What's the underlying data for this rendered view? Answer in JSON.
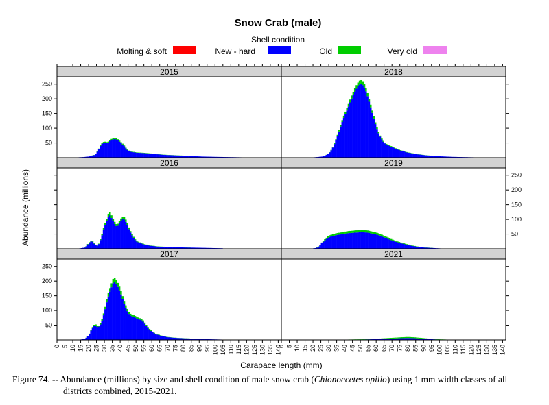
{
  "chart_data": {
    "type": "bar",
    "title": "Snow Crab (male)",
    "legend_title": "Shell condition",
    "legend_placement": "top",
    "xlabel": "Carapace length (mm)",
    "ylabel": "Abundance (millions)",
    "xlim": [
      0,
      142
    ],
    "ylim": [
      0,
      275
    ],
    "x_ticks": [
      0,
      5,
      10,
      15,
      20,
      25,
      30,
      35,
      40,
      45,
      50,
      55,
      60,
      65,
      70,
      75,
      80,
      85,
      90,
      95,
      100,
      105,
      110,
      115,
      120,
      125,
      130,
      135,
      140
    ],
    "y_ticks": [
      50,
      100,
      150,
      200,
      250
    ],
    "series": [
      {
        "name": "Molting & soft",
        "color": "#ff0000"
      },
      {
        "name": "New - hard",
        "color": "#0000ff"
      },
      {
        "name": "Old",
        "color": "#00cd00"
      },
      {
        "name": "Very old",
        "color": "#ee82ee"
      }
    ],
    "panels": [
      {
        "year": "2015",
        "profile": [
          [
            8,
            0
          ],
          [
            12,
            1
          ],
          [
            16,
            2
          ],
          [
            20,
            4
          ],
          [
            24,
            10
          ],
          [
            26,
            25
          ],
          [
            28,
            48
          ],
          [
            30,
            55
          ],
          [
            32,
            52
          ],
          [
            34,
            62
          ],
          [
            36,
            68
          ],
          [
            38,
            65
          ],
          [
            40,
            55
          ],
          [
            42,
            45
          ],
          [
            44,
            30
          ],
          [
            46,
            22
          ],
          [
            50,
            18
          ],
          [
            56,
            16
          ],
          [
            62,
            13
          ],
          [
            68,
            10
          ],
          [
            76,
            8
          ],
          [
            84,
            6
          ],
          [
            92,
            4
          ],
          [
            100,
            3
          ],
          [
            110,
            2
          ],
          [
            120,
            1
          ],
          [
            128,
            1
          ],
          [
            130,
            0
          ]
        ],
        "old_fraction": 0.06
      },
      {
        "year": "2018",
        "profile": [
          [
            18,
            0
          ],
          [
            22,
            2
          ],
          [
            26,
            4
          ],
          [
            28,
            8
          ],
          [
            30,
            15
          ],
          [
            32,
            30
          ],
          [
            34,
            55
          ],
          [
            36,
            85
          ],
          [
            38,
            120
          ],
          [
            40,
            150
          ],
          [
            42,
            175
          ],
          [
            44,
            205
          ],
          [
            46,
            230
          ],
          [
            48,
            252
          ],
          [
            50,
            265
          ],
          [
            52,
            258
          ],
          [
            54,
            230
          ],
          [
            56,
            190
          ],
          [
            58,
            150
          ],
          [
            60,
            110
          ],
          [
            62,
            80
          ],
          [
            64,
            60
          ],
          [
            66,
            48
          ],
          [
            70,
            38
          ],
          [
            74,
            28
          ],
          [
            80,
            18
          ],
          [
            86,
            12
          ],
          [
            92,
            8
          ],
          [
            100,
            5
          ],
          [
            108,
            3
          ],
          [
            116,
            2
          ],
          [
            124,
            1
          ],
          [
            126,
            0
          ]
        ],
        "old_fraction": 0.05
      },
      {
        "year": "2016",
        "profile": [
          [
            4,
            0
          ],
          [
            8,
            1
          ],
          [
            14,
            1
          ],
          [
            18,
            5
          ],
          [
            20,
            20
          ],
          [
            22,
            30
          ],
          [
            24,
            15
          ],
          [
            26,
            10
          ],
          [
            28,
            40
          ],
          [
            30,
            80
          ],
          [
            32,
            110
          ],
          [
            33,
            128
          ],
          [
            34,
            120
          ],
          [
            36,
            95
          ],
          [
            38,
            80
          ],
          [
            40,
            100
          ],
          [
            42,
            112
          ],
          [
            44,
            95
          ],
          [
            46,
            65
          ],
          [
            48,
            45
          ],
          [
            50,
            28
          ],
          [
            54,
            18
          ],
          [
            58,
            12
          ],
          [
            64,
            8
          ],
          [
            72,
            6
          ],
          [
            80,
            5
          ],
          [
            88,
            4
          ],
          [
            96,
            3
          ],
          [
            104,
            2
          ],
          [
            108,
            0
          ]
        ],
        "old_fraction": 0.08
      },
      {
        "year": "2019",
        "profile": [
          [
            18,
            0
          ],
          [
            22,
            3
          ],
          [
            24,
            10
          ],
          [
            26,
            25
          ],
          [
            28,
            35
          ],
          [
            30,
            45
          ],
          [
            34,
            52
          ],
          [
            38,
            56
          ],
          [
            42,
            60
          ],
          [
            46,
            62
          ],
          [
            50,
            64
          ],
          [
            54,
            63
          ],
          [
            58,
            58
          ],
          [
            62,
            52
          ],
          [
            66,
            42
          ],
          [
            70,
            32
          ],
          [
            74,
            24
          ],
          [
            78,
            18
          ],
          [
            82,
            12
          ],
          [
            86,
            8
          ],
          [
            90,
            5
          ],
          [
            96,
            3
          ],
          [
            102,
            1
          ],
          [
            106,
            0
          ]
        ],
        "old_fraction": 0.12
      },
      {
        "year": "2017",
        "profile": [
          [
            14,
            0
          ],
          [
            18,
            5
          ],
          [
            20,
            15
          ],
          [
            22,
            40
          ],
          [
            24,
            55
          ],
          [
            26,
            45
          ],
          [
            28,
            60
          ],
          [
            30,
            100
          ],
          [
            32,
            150
          ],
          [
            34,
            185
          ],
          [
            36,
            215
          ],
          [
            38,
            200
          ],
          [
            40,
            175
          ],
          [
            42,
            140
          ],
          [
            44,
            110
          ],
          [
            46,
            90
          ],
          [
            48,
            85
          ],
          [
            50,
            80
          ],
          [
            52,
            75
          ],
          [
            54,
            70
          ],
          [
            56,
            55
          ],
          [
            58,
            40
          ],
          [
            60,
            30
          ],
          [
            62,
            22
          ],
          [
            66,
            15
          ],
          [
            70,
            10
          ],
          [
            76,
            7
          ],
          [
            84,
            5
          ],
          [
            92,
            3
          ],
          [
            100,
            2
          ],
          [
            106,
            1
          ],
          [
            110,
            0
          ]
        ],
        "old_fraction": 0.07
      },
      {
        "year": "2021",
        "profile": [
          [
            0,
            0
          ],
          [
            8,
            1
          ],
          [
            20,
            1
          ],
          [
            40,
            1
          ],
          [
            50,
            2
          ],
          [
            60,
            4
          ],
          [
            70,
            7
          ],
          [
            76,
            9
          ],
          [
            80,
            10
          ],
          [
            84,
            9
          ],
          [
            88,
            7
          ],
          [
            94,
            4
          ],
          [
            100,
            2
          ],
          [
            106,
            1
          ],
          [
            110,
            0
          ]
        ],
        "old_fraction": 0.35
      }
    ]
  },
  "caption": {
    "line1": "Figure 74. -- Abundance (millions) by size and shell condition of male snow crab (",
    "species": "Chionoecetes opilio",
    "line1_end": ") using 1 mm width classes of all",
    "line2": "districts combined, 2015-2021."
  }
}
